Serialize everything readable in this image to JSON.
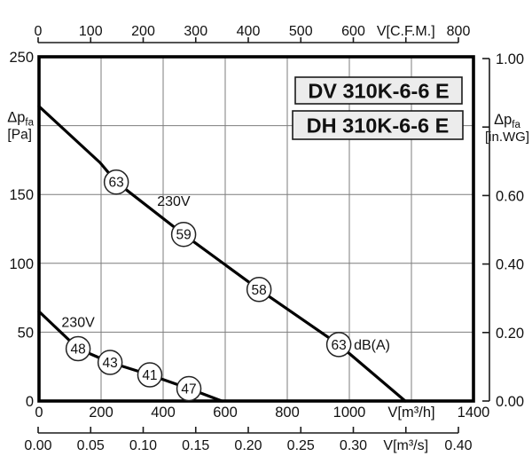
{
  "model_labels": [
    "DV 310K-6-6 E",
    "DH 310K-6-6 E"
  ],
  "colors": {
    "curve": "#000000",
    "grid": "#7d7d7d",
    "axis": "#1a1a1a",
    "box_fill": "#ececec",
    "box_border": "#1a1a1a",
    "marker_fill": "#ffffff"
  },
  "chart_data": {
    "type": "line",
    "title": "",
    "grid": {
      "x_values": [
        200,
        400,
        600,
        800,
        1000,
        1200
      ],
      "y_values": [
        50,
        100,
        150,
        200
      ]
    },
    "axes": {
      "left": {
        "range": [
          0,
          250
        ],
        "title": {
          "text": "Δp",
          "sub": "fa",
          "unit": "[Pa]"
        },
        "title_at": 200,
        "labels": [
          {
            "v": 0,
            "text": "0"
          },
          {
            "v": 50,
            "text": "50"
          },
          {
            "v": 100,
            "text": "100"
          },
          {
            "v": 150,
            "text": "150"
          },
          {
            "v": 250,
            "text": "250"
          }
        ]
      },
      "right": {
        "range": [
          0,
          1.0
        ],
        "title": {
          "text": "Δp",
          "sub": "fa",
          "unit": "[in.WG]"
        },
        "title_at": 0.8,
        "tick_values": [
          0,
          0.2,
          0.4,
          0.6,
          0.8,
          1.0
        ],
        "labels": [
          {
            "v": 0,
            "text": "0.00"
          },
          {
            "v": 0.2,
            "text": "0.20"
          },
          {
            "v": 0.4,
            "text": "0.40"
          },
          {
            "v": 0.6,
            "text": "0.60"
          },
          {
            "v": 1.0,
            "text": "1.00"
          }
        ]
      },
      "top": {
        "range": [
          0,
          800
        ],
        "tick_values": [
          0,
          100,
          200,
          300,
          400,
          500,
          600,
          700,
          800
        ],
        "labels": [
          {
            "v": 0,
            "text": "0"
          },
          {
            "v": 100,
            "text": "100"
          },
          {
            "v": 200,
            "text": "200"
          },
          {
            "v": 300,
            "text": "300"
          },
          {
            "v": 400,
            "text": "400"
          },
          {
            "v": 500,
            "text": "500"
          },
          {
            "v": 600,
            "text": "600"
          },
          {
            "v": 700,
            "text": "V[C.F.M.]"
          },
          {
            "v": 800,
            "text": "800"
          }
        ]
      },
      "bottom_main": {
        "range": [
          0,
          1400
        ],
        "labels": [
          {
            "v": 0,
            "text": "0"
          },
          {
            "v": 200,
            "text": "200"
          },
          {
            "v": 400,
            "text": "400"
          },
          {
            "v": 600,
            "text": "600"
          },
          {
            "v": 800,
            "text": "800"
          },
          {
            "v": 1000,
            "text": "1000"
          },
          {
            "v": 1200,
            "text": "V[m³/h]"
          },
          {
            "v": 1400,
            "text": "1400"
          }
        ]
      },
      "bottom_secondary": {
        "range": [
          0,
          0.4
        ],
        "tick_values": [
          0,
          0.05,
          0.1,
          0.15,
          0.2,
          0.25,
          0.3,
          0.35,
          0.4
        ],
        "labels": [
          {
            "v": 0,
            "text": "0.00"
          },
          {
            "v": 0.05,
            "text": "0.05"
          },
          {
            "v": 0.1,
            "text": "0.10"
          },
          {
            "v": 0.15,
            "text": "0.15"
          },
          {
            "v": 0.2,
            "text": "0.20"
          },
          {
            "v": 0.25,
            "text": "0.25"
          },
          {
            "v": 0.3,
            "text": "0.30"
          },
          {
            "v": 0.35,
            "text": "V[m³/s]"
          },
          {
            "v": 0.4,
            "text": "0.40"
          }
        ]
      }
    },
    "series": [
      {
        "name": "230V high-speed curve",
        "label": "230V",
        "label_at": {
          "x": 434,
          "pa": 145
        },
        "points": [
          [
            0,
            214
          ],
          [
            197,
            173
          ],
          [
            249,
            159
          ],
          [
            466,
            121
          ],
          [
            709,
            81
          ],
          [
            966,
            41
          ],
          [
            1180,
            0
          ]
        ],
        "markers": [
          {
            "x": 249,
            "pa": 159,
            "db": "63"
          },
          {
            "x": 466,
            "pa": 121,
            "db": "59"
          },
          {
            "x": 709,
            "pa": 81,
            "db": "58"
          },
          {
            "x": 966,
            "pa": 41,
            "db": "63",
            "suffix": "dB(A)"
          }
        ]
      },
      {
        "name": "230V low-speed curve",
        "label": "230V",
        "label_at": {
          "x": 126,
          "pa": 57
        },
        "points": [
          [
            0,
            65
          ],
          [
            126,
            38
          ],
          [
            229,
            28
          ],
          [
            357,
            19
          ],
          [
            483,
            9
          ],
          [
            589,
            0
          ]
        ],
        "markers": [
          {
            "x": 126,
            "pa": 38,
            "db": "48"
          },
          {
            "x": 229,
            "pa": 28,
            "db": "43"
          },
          {
            "x": 357,
            "pa": 19,
            "db": "41"
          },
          {
            "x": 483,
            "pa": 9,
            "db": "47"
          }
        ]
      }
    ]
  }
}
